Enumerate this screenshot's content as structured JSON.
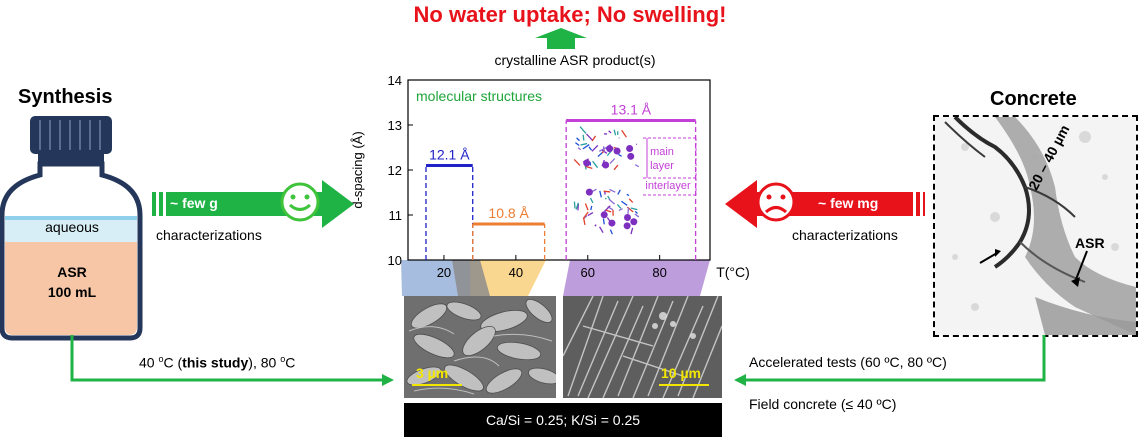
{
  "headline": "No water uptake; No swelling!",
  "crystalline_product": "crystalline ASR product(s)",
  "left": {
    "title": "Synthesis",
    "bottle_layer_top": "aqueous",
    "bottle_layer_bottom_line1": "ASR",
    "bottle_layer_bottom_line2": "100 mL",
    "arrow_label": "~ few g",
    "characterizations": "characterizations",
    "smiley_icon": "smiley-face-icon",
    "temperature_note_pre": "40 ",
    "temperature_note_o1": "o",
    "temperature_note_mid": "C (",
    "temperature_note_bold": "this study",
    "temperature_note_post": "), 80 ",
    "temperature_note_o2": "o",
    "temperature_note_end": "C"
  },
  "right": {
    "title": "Concrete",
    "arrow_label": "~ few mg",
    "characterizations": "characterizations",
    "frown_icon": "frown-face-icon",
    "crack_width": "20 – 40 µm",
    "asr_label": "ASR",
    "accelerated_tests": "Accelerated tests (60 ºC, 80 ºC)",
    "field_concrete": "Field concrete (≤ 40 ºC)"
  },
  "chart_data": {
    "type": "step",
    "ylabel": "d-spacing (Å)",
    "xlabel": "T(°C)",
    "ylim": [
      10,
      14
    ],
    "yticks": [
      "10",
      "11",
      "12",
      "13",
      "14"
    ],
    "xticks": [
      "20",
      "40",
      "60",
      "80"
    ],
    "annotation": "molecular structures",
    "series": [
      {
        "label": "12.1 Å",
        "value": 12.1,
        "x_range": [
          15,
          28
        ],
        "color": "#1f22c8"
      },
      {
        "label": "10.8 Å",
        "value": 10.8,
        "x_range": [
          28,
          48
        ],
        "color": "#ed7d31"
      },
      {
        "label": "13.1 Å",
        "value": 13.1,
        "x_range": [
          54,
          90
        ],
        "color": "#c33fd8"
      }
    ],
    "structure_labels": [
      "main",
      "layer",
      "interlayer"
    ]
  },
  "sem": {
    "left_scale": "3 µm",
    "right_scale": "10 µm"
  },
  "composition": "Ca/Si = 0.25; K/Si = 0.25",
  "colors": {
    "green": "#1fb346",
    "red": "#e8121b",
    "blue": "#1f22c8",
    "orange": "#ed7d31",
    "purple": "#c33fd8"
  }
}
